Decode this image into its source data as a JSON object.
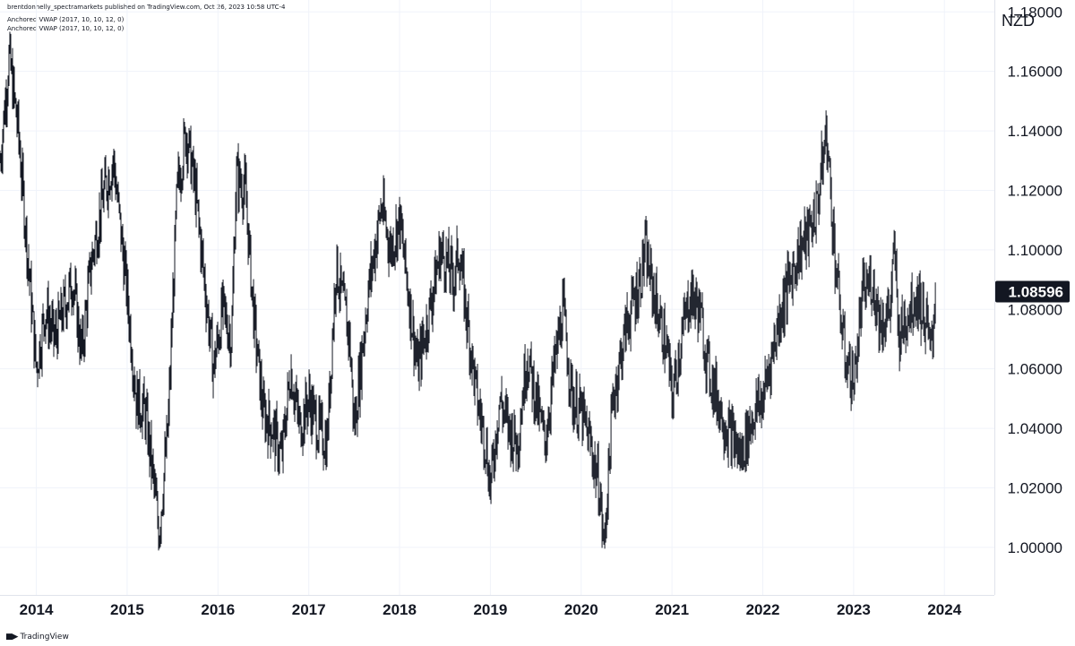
{
  "header": {
    "publish_line": "brentdonnelly_spectramarkets published on TradingView.com, Oct 26, 2023 10:58 UTC-4",
    "indicators": [
      "Anchored VWAP (2017, 10, 10, 12, 0)",
      "Anchored VWAP (2017, 10, 10, 12, 0)"
    ]
  },
  "price_axis": {
    "unit": "NZD",
    "current_price_label": "1.08596"
  },
  "footer": {
    "brand": "TradingView",
    "logo_icon": "tradingview-logo-icon"
  },
  "colors": {
    "bars": "#131722",
    "badge_bg": "#131722",
    "badge_text": "#ffffff",
    "grid": "#f0f3fa"
  },
  "chart_data": {
    "type": "line",
    "style": "ohlc-bars",
    "title": "",
    "xlabel": "",
    "ylabel": "",
    "ylim": [
      0.984,
      1.184
    ],
    "xlim": [
      2013.6,
      2024.55
    ],
    "y_ticks": [
      "1.00000",
      "1.02000",
      "1.04000",
      "1.06000",
      "1.08000",
      "1.10000",
      "1.12000",
      "1.14000",
      "1.16000",
      "1.18000"
    ],
    "x_ticks": [
      "2014",
      "2015",
      "2016",
      "2017",
      "2018",
      "2019",
      "2020",
      "2021",
      "2022",
      "2023",
      "2024"
    ],
    "last_value": 1.08596,
    "grid": true,
    "series": [
      {
        "x": [
          2013.6,
          2013.7,
          2013.8,
          2013.95,
          2014.0,
          2014.1,
          2014.2,
          2014.4,
          2014.5,
          2014.6,
          2014.75,
          2014.85,
          2015.0,
          2015.1,
          2015.2,
          2015.28,
          2015.35,
          2015.45,
          2015.55,
          2015.65,
          2015.75,
          2015.85,
          2015.95,
          2016.05,
          2016.15,
          2016.2,
          2016.3,
          2016.4,
          2016.5,
          2016.6,
          2016.7,
          2016.8,
          2016.9,
          2017.0,
          2017.1,
          2017.2,
          2017.3,
          2017.45,
          2017.5,
          2017.65,
          2017.8,
          2017.9,
          2018.0,
          2018.1,
          2018.2,
          2018.3,
          2018.45,
          2018.6,
          2018.65,
          2018.75,
          2018.85,
          2018.95,
          2019.0,
          2019.1,
          2019.2,
          2019.3,
          2019.4,
          2019.5,
          2019.6,
          2019.7,
          2019.8,
          2019.9,
          2020.0,
          2020.1,
          2020.2,
          2020.25,
          2020.35,
          2020.5,
          2020.65,
          2020.7,
          2020.8,
          2020.95,
          2021.0,
          2021.1,
          2021.2,
          2021.3,
          2021.4,
          2021.5,
          2021.6,
          2021.7,
          2021.75,
          2021.8,
          2021.9,
          2022.0,
          2022.1,
          2022.2,
          2022.3,
          2022.4,
          2022.5,
          2022.6,
          2022.7,
          2022.8,
          2022.9,
          2023.0,
          2023.1,
          2023.2,
          2023.3,
          2023.4,
          2023.45,
          2023.5,
          2023.6,
          2023.7,
          2023.8,
          2023.85,
          2023.9
        ],
        "y": [
          1.13,
          1.165,
          1.14,
          1.08,
          1.06,
          1.08,
          1.07,
          1.09,
          1.065,
          1.095,
          1.12,
          1.13,
          1.085,
          1.05,
          1.045,
          1.025,
          1.005,
          1.04,
          1.12,
          1.14,
          1.12,
          1.09,
          1.06,
          1.08,
          1.07,
          1.125,
          1.12,
          1.075,
          1.045,
          1.04,
          1.03,
          1.06,
          1.04,
          1.05,
          1.04,
          1.035,
          1.095,
          1.07,
          1.04,
          1.085,
          1.115,
          1.1,
          1.11,
          1.085,
          1.06,
          1.075,
          1.1,
          1.09,
          1.1,
          1.075,
          1.05,
          1.035,
          1.02,
          1.05,
          1.04,
          1.035,
          1.065,
          1.05,
          1.035,
          1.06,
          1.08,
          1.05,
          1.045,
          1.035,
          1.02,
          1.0,
          1.05,
          1.075,
          1.09,
          1.1,
          1.085,
          1.065,
          1.05,
          1.07,
          1.085,
          1.08,
          1.06,
          1.05,
          1.04,
          1.035,
          1.03,
          1.035,
          1.045,
          1.05,
          1.065,
          1.08,
          1.09,
          1.1,
          1.105,
          1.115,
          1.14,
          1.095,
          1.065,
          1.055,
          1.085,
          1.09,
          1.075,
          1.08,
          1.1,
          1.07,
          1.08,
          1.085,
          1.075,
          1.065,
          1.086
        ]
      }
    ]
  }
}
